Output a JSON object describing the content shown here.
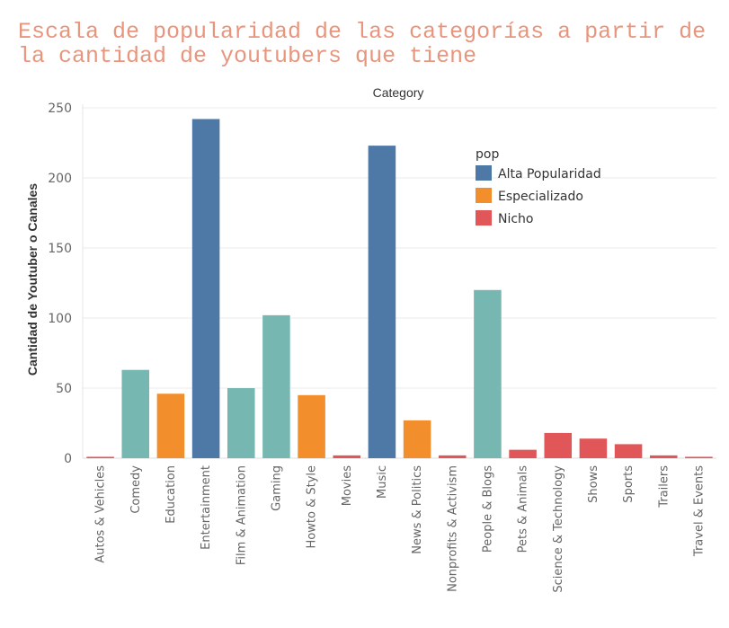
{
  "chart_data": {
    "type": "bar",
    "title": "Escala de popularidad de las categorías a partir de la cantidad de youtubers que tiene",
    "xlabel": "Category",
    "ylabel": "Cantidad de Youtuber o Canales",
    "ylim": [
      0,
      250
    ],
    "yticks": [
      0,
      50,
      100,
      150,
      200,
      250
    ],
    "grid": true,
    "legend": {
      "title": "pop",
      "placement": "top-right",
      "entries": [
        {
          "label": "Alta Popularidad",
          "color": "#4e79a7"
        },
        {
          "label": "Especializado",
          "color": "#f28e2b"
        },
        {
          "label": "Nicho",
          "color": "#e15759"
        }
      ]
    },
    "teal_color": "#76b7b2",
    "categories": [
      "Autos & Vehicles",
      "Comedy",
      "Education",
      "Entertainment",
      "Film & Animation",
      "Gaming",
      "Howto & Style",
      "Movies",
      "Music",
      "News & Politics",
      "Nonprofits & Activism",
      "People & Blogs",
      "Pets & Animals",
      "Science & Technology",
      "Shows",
      "Sports",
      "Trailers",
      "Travel & Events"
    ],
    "values": [
      1,
      63,
      46,
      242,
      50,
      102,
      45,
      2,
      223,
      27,
      2,
      120,
      6,
      18,
      14,
      10,
      2,
      1
    ],
    "colors": [
      "#e15759",
      "#76b7b2",
      "#f28e2b",
      "#4e79a7",
      "#76b7b2",
      "#76b7b2",
      "#f28e2b",
      "#e15759",
      "#4e79a7",
      "#f28e2b",
      "#e15759",
      "#76b7b2",
      "#e15759",
      "#e15759",
      "#e15759",
      "#e15759",
      "#e15759",
      "#e15759"
    ]
  }
}
